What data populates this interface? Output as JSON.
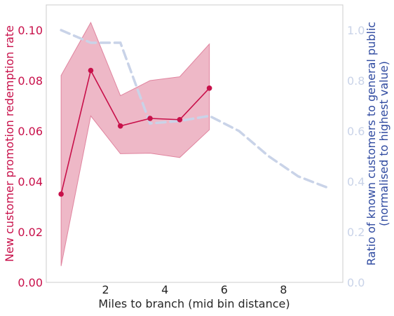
{
  "chart_data": {
    "type": "line",
    "xlabel": "Miles to branch (mid bin distance)",
    "ylabel_left": "New customer promotion redemption rate",
    "ylabel_right_lines": [
      "Ratio of known customers to general public",
      "(normalised to highest value)"
    ],
    "xlim": [
      0,
      10
    ],
    "ylim_left": [
      0,
      0.11
    ],
    "ylim_right": [
      0,
      1.1
    ],
    "x_ticks": [
      2,
      4,
      6,
      8
    ],
    "x_tick_labels": [
      "2",
      "4",
      "6",
      "8"
    ],
    "y_left_ticks": [
      0,
      0.02,
      0.04,
      0.06,
      0.08,
      0.1
    ],
    "y_left_tick_labels": [
      "0.00",
      "0.02",
      "0.04",
      "0.06",
      "0.08",
      "0.10"
    ],
    "y_right_ticks": [
      0,
      0.2,
      0.4,
      0.6,
      0.8,
      1.0
    ],
    "y_right_tick_labels": [
      "0.0",
      "0.2",
      "0.4",
      "0.6",
      "0.8",
      "1.0"
    ],
    "grid": false,
    "series": [
      {
        "axis": "left",
        "style": "solid-markers",
        "color": "#c8104a",
        "x": [
          0.5,
          1.5,
          2.5,
          3.5,
          4.5,
          5.5
        ],
        "values": [
          0.035,
          0.084,
          0.062,
          0.065,
          0.0645,
          0.077
        ],
        "band_lower": [
          0.0065,
          0.066,
          0.051,
          0.0512,
          0.0495,
          0.0605
        ],
        "band_upper": [
          0.082,
          0.103,
          0.074,
          0.08,
          0.0815,
          0.0945
        ],
        "band_color": "#e8a0b4"
      },
      {
        "axis": "right",
        "style": "dashed",
        "color": "#c9d3e8",
        "x": [
          0.5,
          1.5,
          2.5,
          3.5,
          4.5,
          5.5,
          6.5,
          7.5,
          8.5,
          9.5
        ],
        "values": [
          1.0,
          0.95,
          0.95,
          0.63,
          0.64,
          0.66,
          0.6,
          0.5,
          0.42,
          0.375
        ]
      }
    ],
    "colors": {
      "left_axis": "#c8104a",
      "right_axis_label": "#2f4aa0",
      "right_ticks": "#c9d3e8",
      "axes_text": "#262626",
      "spine": "#cccccc"
    }
  }
}
